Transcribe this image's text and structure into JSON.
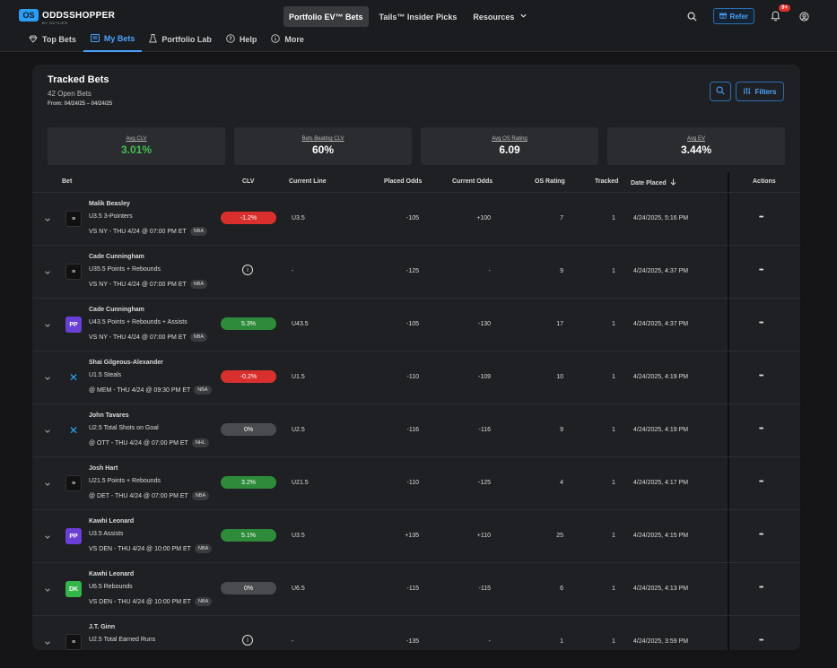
{
  "app": {
    "logo_mark": "OS",
    "logo_text": "ODDSSHOPPER",
    "logo_sub": "BY OUTLIER",
    "top_nav": [
      {
        "label": "Portfolio EV™ Bets",
        "active": true
      },
      {
        "label": "Tails™ Insider Picks",
        "active": false
      },
      {
        "label": "Resources",
        "active": false
      }
    ],
    "refer_label": "Refer",
    "notifications_badge": "9+"
  },
  "subnav": [
    {
      "label": "Top Bets",
      "icon": "diamond-icon",
      "active": false
    },
    {
      "label": "My Bets",
      "icon": "list-icon",
      "active": true
    },
    {
      "label": "Portfolio Lab",
      "icon": "flask-icon",
      "active": false
    },
    {
      "label": "Help",
      "icon": "help-icon",
      "active": false
    },
    {
      "label": "More",
      "icon": "info-icon",
      "active": false
    }
  ],
  "panel": {
    "title": "Tracked Bets",
    "open_bets": "42 Open Bets",
    "date_range": "From: 04/24/25 – 04/24/25",
    "filters_label": "Filters"
  },
  "stats": [
    {
      "label": "Avg CLV",
      "value": "3.01%",
      "green": true
    },
    {
      "label": "Bets Beating CLV",
      "value": "60%",
      "green": false
    },
    {
      "label": "Avg OS Rating",
      "value": "6.09",
      "green": false
    },
    {
      "label": "Avg EV",
      "value": "3.44%",
      "green": false
    }
  ],
  "columns": {
    "bet": "Bet",
    "clv": "CLV",
    "current_line": "Current Line",
    "placed_odds": "Placed Odds",
    "current_odds": "Current Odds",
    "os_rating": "OS Rating",
    "tracked": "Tracked",
    "date_placed": "Date Placed",
    "actions": "Actions"
  },
  "rows": [
    {
      "player": "Malik Beasley",
      "bet": "U3.5 3-Pointers",
      "game": "VS NY - THU 4/24 @ 07:00 PM ET",
      "league": "NBA",
      "book": "dark",
      "book_label": "≡",
      "clv": "-1.2%",
      "clv_style": "red",
      "current_line": "U3.5",
      "placed_odds": "-105",
      "current_odds": "+100",
      "os_rating": "7",
      "tracked": "1",
      "date": "4/24/2025, 5:16 PM"
    },
    {
      "player": "Cade Cunningham",
      "bet": "U35.5 Points + Rebounds",
      "game": "VS NY - THU 4/24 @ 07:00 PM ET",
      "league": "NBA",
      "book": "dark",
      "book_label": "≡",
      "clv": "i",
      "clv_style": "info",
      "current_line": "-",
      "placed_odds": "-125",
      "current_odds": "-",
      "os_rating": "9",
      "tracked": "1",
      "date": "4/24/2025, 4:37 PM"
    },
    {
      "player": "Cade Cunningham",
      "bet": "U43.5 Points + Rebounds + Assists",
      "game": "VS NY - THU 4/24 @ 07:00 PM ET",
      "league": "NBA",
      "book": "purple",
      "book_label": "PP",
      "clv": "5.3%",
      "clv_style": "green",
      "current_line": "U43.5",
      "placed_odds": "-105",
      "current_odds": "-130",
      "os_rating": "17",
      "tracked": "1",
      "date": "4/24/2025, 4:37 PM"
    },
    {
      "player": "Shai Gilgeous-Alexander",
      "bet": "U1.5 Steals",
      "game": "@ MEM - THU 4/24 @ 09:30 PM ET",
      "league": "NBA",
      "book": "x",
      "book_label": "✕",
      "clv": "-0.2%",
      "clv_style": "red",
      "current_line": "U1.5",
      "placed_odds": "-110",
      "current_odds": "-109",
      "os_rating": "10",
      "tracked": "1",
      "date": "4/24/2025, 4:19 PM"
    },
    {
      "player": "John Tavares",
      "bet": "U2.5 Total Shots on Goal",
      "game": "@ OTT - THU 4/24 @ 07:00 PM ET",
      "league": "NHL",
      "book": "x",
      "book_label": "✕",
      "clv": "0%",
      "clv_style": "gray",
      "current_line": "U2.5",
      "placed_odds": "-116",
      "current_odds": "-116",
      "os_rating": "9",
      "tracked": "1",
      "date": "4/24/2025, 4:19 PM"
    },
    {
      "player": "Josh Hart",
      "bet": "U21.5 Points + Rebounds",
      "game": "@ DET - THU 4/24 @ 07:00 PM ET",
      "league": "NBA",
      "book": "dark",
      "book_label": "≡",
      "clv": "3.2%",
      "clv_style": "green",
      "current_line": "U21.5",
      "placed_odds": "-110",
      "current_odds": "-125",
      "os_rating": "4",
      "tracked": "1",
      "date": "4/24/2025, 4:17 PM"
    },
    {
      "player": "Kawhi Leonard",
      "bet": "U3.5 Assists",
      "game": "VS DEN - THU 4/24 @ 10:00 PM ET",
      "league": "NBA",
      "book": "purple",
      "book_label": "PP",
      "clv": "5.1%",
      "clv_style": "green",
      "current_line": "U3.5",
      "placed_odds": "+135",
      "current_odds": "+110",
      "os_rating": "25",
      "tracked": "1",
      "date": "4/24/2025, 4:15 PM"
    },
    {
      "player": "Kawhi Leonard",
      "bet": "U6.5 Rebounds",
      "game": "VS DEN - THU 4/24 @ 10:00 PM ET",
      "league": "NBA",
      "book": "green",
      "book_label": "DK",
      "clv": "0%",
      "clv_style": "gray",
      "current_line": "U6.5",
      "placed_odds": "-115",
      "current_odds": "-115",
      "os_rating": "6",
      "tracked": "1",
      "date": "4/24/2025, 4:13 PM"
    },
    {
      "player": "J.T. Ginn",
      "bet": "U2.5 Total Earned Runs",
      "game": "",
      "league": "",
      "book": "dark",
      "book_label": "≡",
      "clv": "i",
      "clv_style": "info",
      "current_line": "-",
      "placed_odds": "-135",
      "current_odds": "-",
      "os_rating": "1",
      "tracked": "1",
      "date": "4/24/2025, 3:59 PM"
    }
  ]
}
